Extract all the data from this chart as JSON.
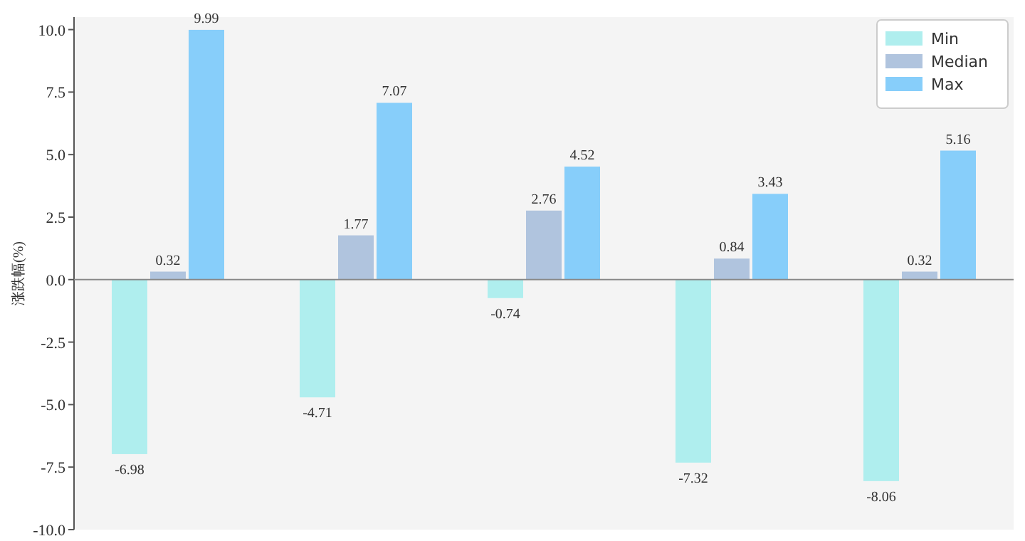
{
  "chart_data": {
    "type": "bar",
    "ylabel": "涨跌幅(%)",
    "categories": [
      null,
      null,
      null,
      null,
      null
    ],
    "series": [
      {
        "name": "Min",
        "color": "#afeeee",
        "values": [
          -6.98,
          -4.71,
          -0.74,
          -7.32,
          -8.06
        ]
      },
      {
        "name": "Median",
        "color": "#b0c4de",
        "values": [
          0.32,
          1.77,
          2.76,
          0.84,
          0.32
        ]
      },
      {
        "name": "Max",
        "color": "#87cefa",
        "values": [
          9.99,
          7.07,
          4.52,
          3.43,
          5.16
        ]
      }
    ],
    "ylim": [
      -10,
      10.5
    ],
    "yticks": [
      {
        "value": -10,
        "label": "-10.0"
      },
      {
        "value": -7.5,
        "label": "-7.5"
      },
      {
        "value": -5,
        "label": "-5.0"
      },
      {
        "value": -2.5,
        "label": "-2.5"
      },
      {
        "value": 0,
        "label": "0.0"
      },
      {
        "value": 2.5,
        "label": "2.5"
      },
      {
        "value": 5,
        "label": "5.0"
      },
      {
        "value": 7.5,
        "label": "7.5"
      },
      {
        "value": 10,
        "label": "10.0"
      }
    ],
    "data_labels": true,
    "legend": "top right"
  }
}
